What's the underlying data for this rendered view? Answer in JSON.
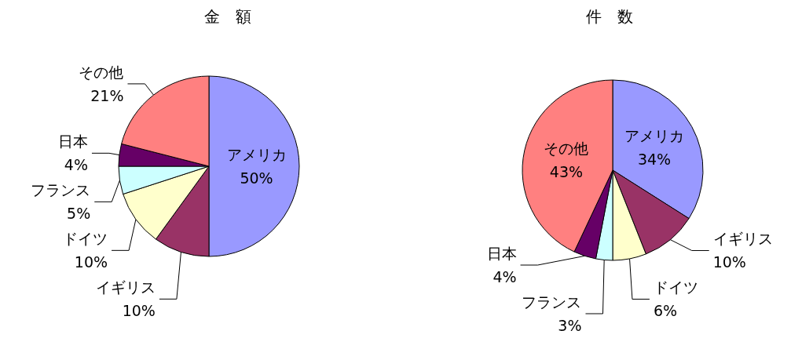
{
  "chart_data": [
    {
      "type": "pie",
      "title": "金　額",
      "categories": [
        "アメリカ",
        "イギリス",
        "ドイツ",
        "フランス",
        "日本",
        "その他"
      ],
      "values": [
        50,
        10,
        10,
        5,
        4,
        21
      ],
      "colors": [
        "#9999ff",
        "#993366",
        "#ffffcc",
        "#ccffff",
        "#660066",
        "#ff8080"
      ],
      "value_labels": [
        "50%",
        "10%",
        "10%",
        "5%",
        "4%",
        "21%"
      ],
      "legend": false
    },
    {
      "type": "pie",
      "title": "件　数",
      "categories": [
        "アメリカ",
        "イギリス",
        "ドイツ",
        "フランス",
        "日本",
        "その他"
      ],
      "values": [
        34,
        10,
        6,
        3,
        4,
        43
      ],
      "colors": [
        "#9999ff",
        "#993366",
        "#ffffcc",
        "#ccffff",
        "#660066",
        "#ff8080"
      ],
      "value_labels": [
        "34%",
        "10%",
        "6%",
        "3%",
        "4%",
        "43%"
      ],
      "legend": false
    }
  ]
}
